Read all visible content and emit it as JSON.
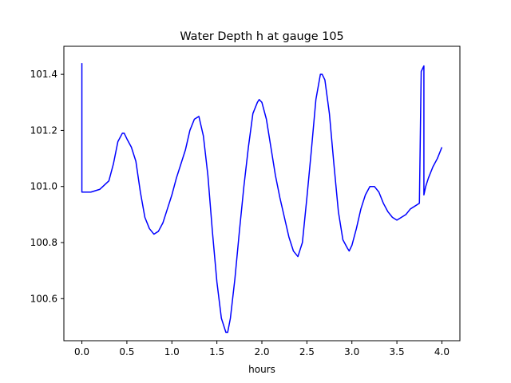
{
  "chart_data": {
    "type": "line",
    "title": "Water Depth h at gauge 105",
    "xlabel": "hours",
    "ylabel": "",
    "xlim": [
      -0.2,
      4.2
    ],
    "ylim": [
      100.45,
      101.5
    ],
    "xticks": [
      0.0,
      0.5,
      1.0,
      1.5,
      2.0,
      2.5,
      3.0,
      3.5,
      4.0
    ],
    "xtick_labels": [
      "0.0",
      "0.5",
      "1.0",
      "1.5",
      "2.0",
      "2.5",
      "3.0",
      "3.5",
      "4.0"
    ],
    "yticks": [
      100.6,
      100.8,
      101.0,
      101.2,
      101.4
    ],
    "ytick_labels": [
      "100.6",
      "100.8",
      "101.0",
      "101.2",
      "101.4"
    ],
    "grid": false,
    "line_color": "#0000ff",
    "series": [
      {
        "x": [
          0.0,
          0.0,
          0.02,
          0.1,
          0.2,
          0.3,
          0.35,
          0.4,
          0.45,
          0.47,
          0.5,
          0.55,
          0.6,
          0.65,
          0.7,
          0.75,
          0.8,
          0.85,
          0.9,
          0.95,
          1.0,
          1.05,
          1.1,
          1.15,
          1.2,
          1.25,
          1.3,
          1.35,
          1.4,
          1.45,
          1.5,
          1.55,
          1.6,
          1.62,
          1.65,
          1.7,
          1.75,
          1.8,
          1.85,
          1.9,
          1.95,
          1.97,
          2.0,
          2.05,
          2.1,
          2.15,
          2.2,
          2.25,
          2.3,
          2.35,
          2.4,
          2.45,
          2.5,
          2.55,
          2.6,
          2.65,
          2.67,
          2.7,
          2.75,
          2.8,
          2.85,
          2.9,
          2.95,
          2.97,
          3.0,
          3.05,
          3.1,
          3.15,
          3.2,
          3.25,
          3.3,
          3.35,
          3.4,
          3.45,
          3.5,
          3.55,
          3.6,
          3.65,
          3.7,
          3.75,
          3.77,
          3.77,
          3.8,
          3.8,
          3.82,
          3.85,
          3.9,
          3.95,
          4.0
        ],
        "y": [
          101.44,
          100.98,
          100.98,
          100.98,
          100.99,
          101.02,
          101.08,
          101.16,
          101.19,
          101.19,
          101.17,
          101.14,
          101.09,
          100.98,
          100.89,
          100.85,
          100.83,
          100.84,
          100.87,
          100.92,
          100.97,
          101.03,
          101.08,
          101.13,
          101.2,
          101.24,
          101.25,
          101.18,
          101.04,
          100.84,
          100.66,
          100.53,
          100.48,
          100.48,
          100.53,
          100.67,
          100.84,
          101.0,
          101.14,
          101.26,
          101.3,
          101.31,
          101.3,
          101.24,
          101.14,
          101.04,
          100.96,
          100.89,
          100.82,
          100.77,
          100.75,
          100.8,
          100.96,
          101.13,
          101.31,
          101.4,
          101.4,
          101.38,
          101.26,
          101.08,
          100.91,
          100.81,
          100.78,
          100.77,
          100.79,
          100.85,
          100.92,
          100.97,
          101.0,
          101.0,
          100.98,
          100.94,
          100.91,
          100.89,
          100.88,
          100.89,
          100.9,
          100.92,
          100.93,
          100.94,
          101.41,
          101.41,
          101.43,
          100.97,
          101.0,
          101.03,
          101.07,
          101.1,
          101.14
        ]
      }
    ]
  }
}
